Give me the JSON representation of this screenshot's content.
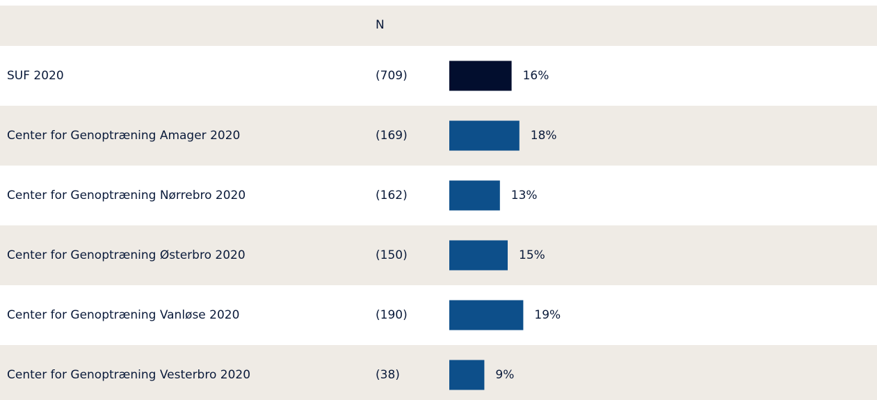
{
  "chart_data": {
    "type": "bar",
    "orientation": "horizontal",
    "column_header": "N",
    "categories": [
      "SUF 2020",
      "Center for Genoptræning Amager 2020",
      "Center for Genoptræning Nørrebro 2020",
      "Center for Genoptræning Østerbro 2020",
      "Center for Genoptræning Vanløse 2020",
      "Center for Genoptræning Vesterbro 2020"
    ],
    "n_labels": [
      "(709)",
      "(169)",
      "(162)",
      "(150)",
      "(190)",
      "(38)"
    ],
    "values": [
      16,
      18,
      13,
      15,
      19,
      9
    ],
    "value_labels": [
      "16%",
      "18%",
      "13%",
      "15%",
      "19%",
      "9%"
    ],
    "colors": [
      "#020e2e",
      "#0d4f8a",
      "#0d4f8a",
      "#0d4f8a",
      "#0d4f8a",
      "#0d4f8a"
    ],
    "xlim": [
      0,
      100
    ]
  }
}
